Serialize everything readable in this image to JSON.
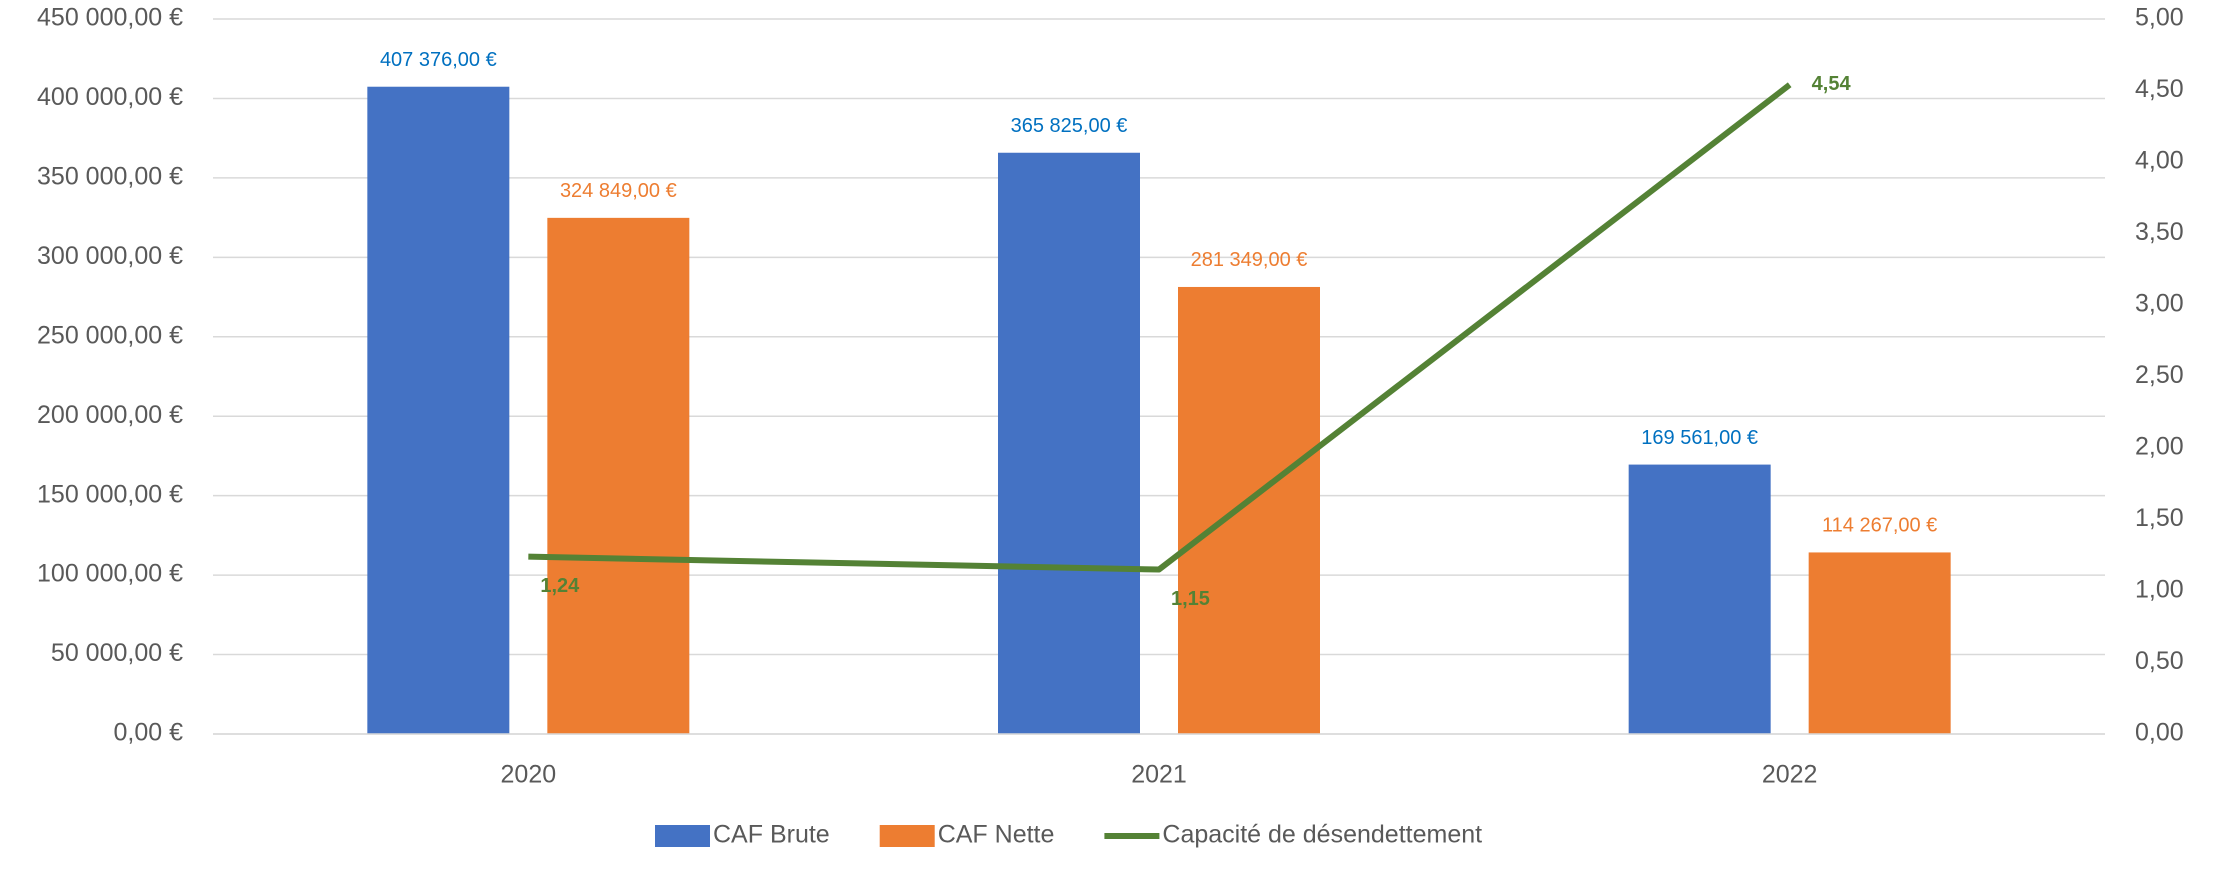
{
  "chart_data": {
    "type": "bar",
    "categories": [
      "2020",
      "2021",
      "2022"
    ],
    "series": [
      {
        "name": "CAF Brute",
        "color": "#4472c4",
        "values": [
          407376,
          365825,
          169561
        ],
        "value_labels": [
          "407 376,00 €",
          "365 825,00 €",
          "169 561,00 €"
        ]
      },
      {
        "name": "CAF Nette",
        "color": "#ed7d31",
        "values": [
          324849,
          281349,
          114267
        ],
        "value_labels": [
          "324 849,00 €",
          "281 349,00 €",
          "114 267,00 €"
        ]
      },
      {
        "name": "Capacité de désendettement",
        "type": "line",
        "axis": "y2",
        "color": "#548235",
        "values": [
          1.24,
          1.15,
          4.54
        ],
        "value_labels": [
          "1,24",
          "1,15",
          "4,54"
        ]
      }
    ],
    "ylim": [
      0,
      450000
    ],
    "yticks": [
      {
        "value": 0,
        "label": "0,00 €"
      },
      {
        "value": 50000,
        "label": "50 000,00 €"
      },
      {
        "value": 100000,
        "label": "100 000,00 €"
      },
      {
        "value": 150000,
        "label": "150 000,00 €"
      },
      {
        "value": 200000,
        "label": "200 000,00 €"
      },
      {
        "value": 250000,
        "label": "250 000,00 €"
      },
      {
        "value": 300000,
        "label": "300 000,00 €"
      },
      {
        "value": 350000,
        "label": "350 000,00 €"
      },
      {
        "value": 400000,
        "label": "400 000,00 €"
      },
      {
        "value": 450000,
        "label": "450 000,00 €"
      }
    ],
    "y2lim": [
      0,
      5
    ],
    "y2ticks": [
      {
        "value": 0,
        "label": "0,00"
      },
      {
        "value": 0.5,
        "label": "0,50"
      },
      {
        "value": 1,
        "label": "1,00"
      },
      {
        "value": 1.5,
        "label": "1,50"
      },
      {
        "value": 2,
        "label": "2,00"
      },
      {
        "value": 2.5,
        "label": "2,50"
      },
      {
        "value": 3,
        "label": "3,00"
      },
      {
        "value": 3.5,
        "label": "3,50"
      },
      {
        "value": 4,
        "label": "4,00"
      },
      {
        "value": 4.5,
        "label": "4,50"
      },
      {
        "value": 5,
        "label": "5,00"
      }
    ],
    "grid": true,
    "legend": "bottom"
  }
}
